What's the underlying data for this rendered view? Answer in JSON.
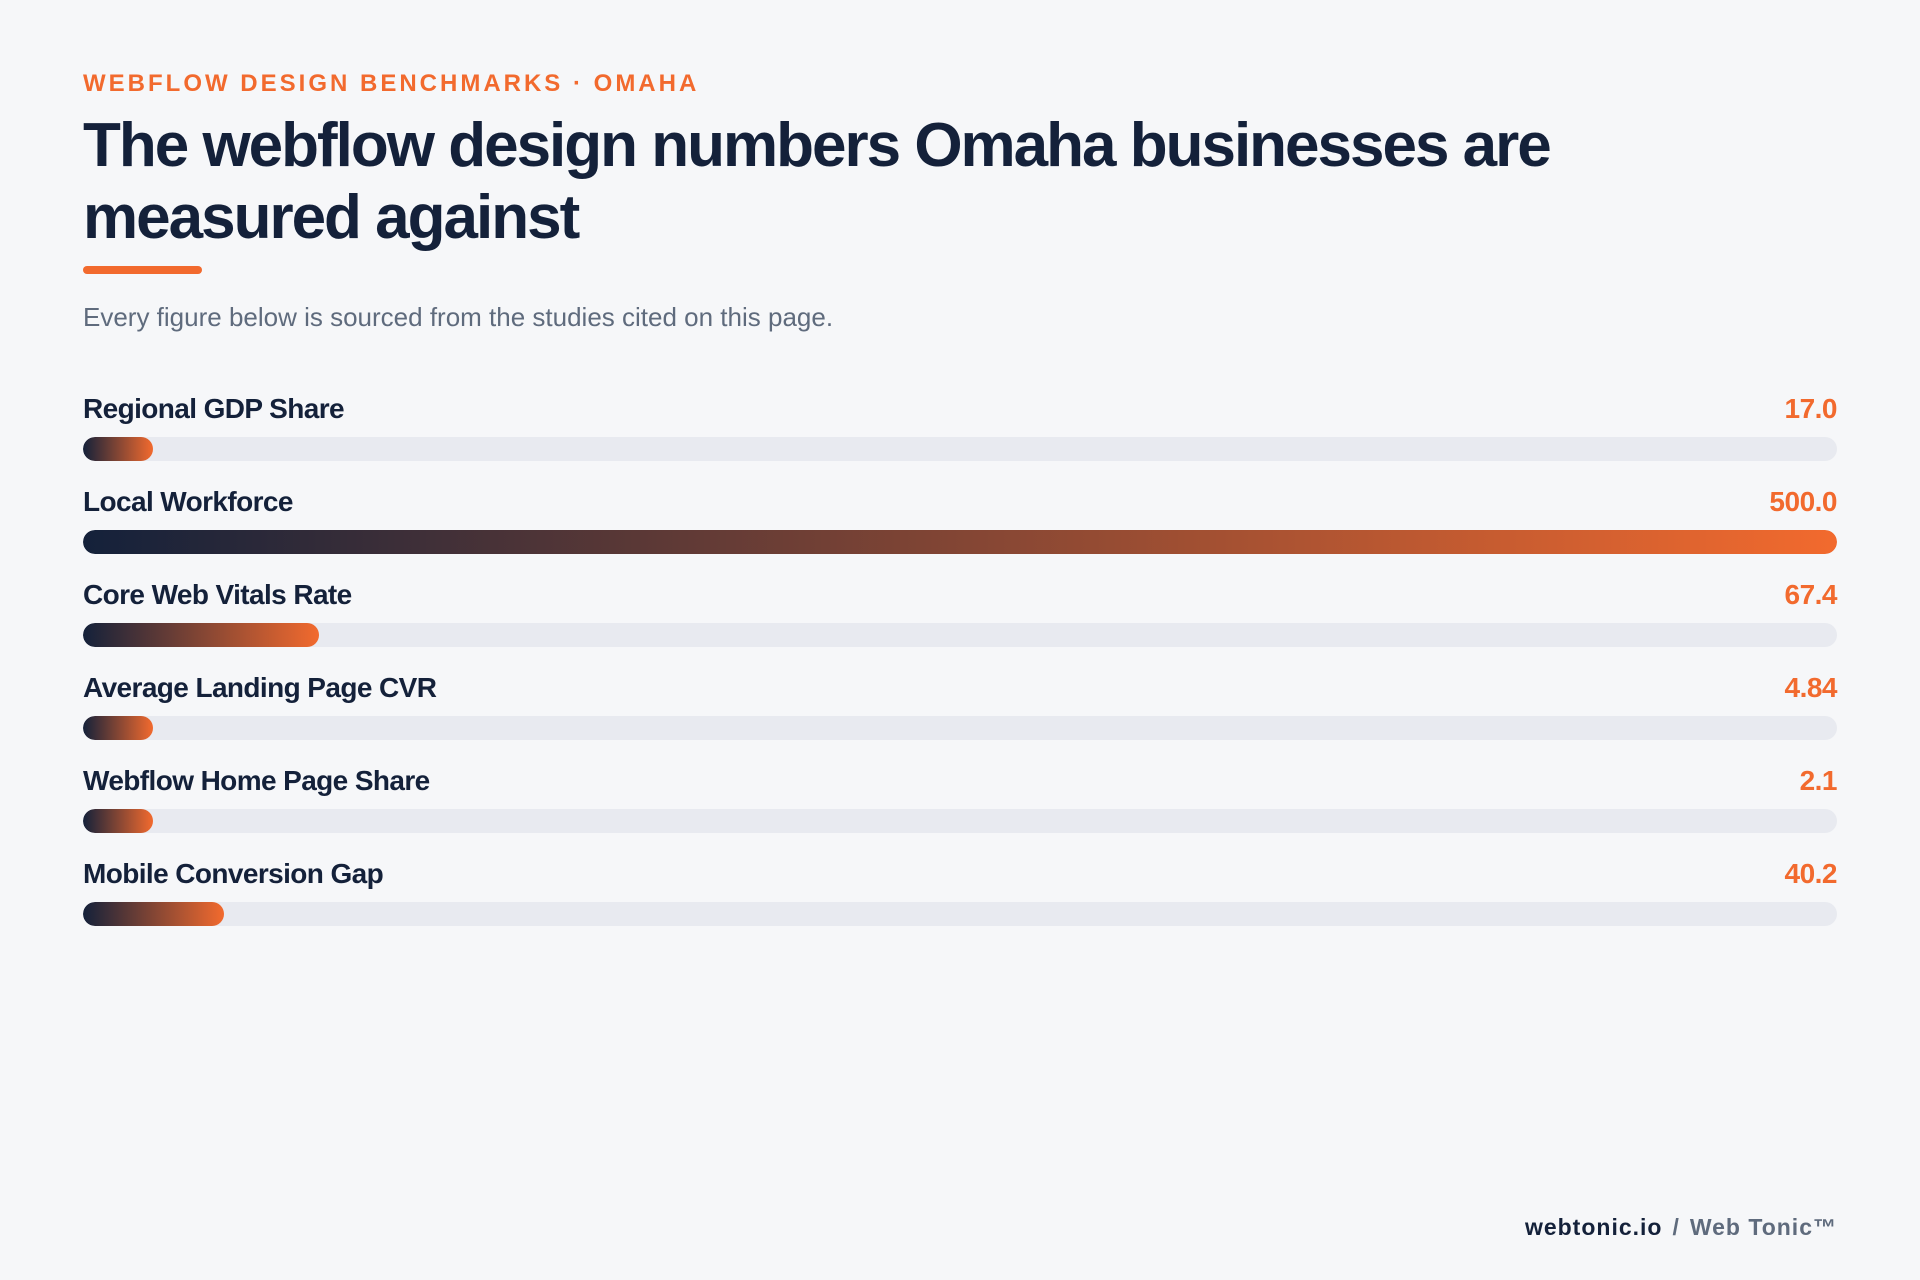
{
  "header": {
    "eyebrow": "WEBFLOW DESIGN BENCHMARKS · OMAHA",
    "title": "The webflow design numbers Omaha businesses are measured against",
    "subtitle": "Every figure below is sourced from the studies cited on this page."
  },
  "footer": {
    "domain": "webtonic.io",
    "separator": "/",
    "brand": "Web Tonic™"
  },
  "colors": {
    "accent": "#f26a2e",
    "navy": "#14213a",
    "track": "#e8eaf0",
    "background": "#f6f7f9"
  },
  "chart_data": {
    "type": "bar",
    "orientation": "horizontal",
    "title": "The webflow design numbers Omaha businesses are measured against",
    "categories": [
      "Regional GDP Share",
      "Local Workforce",
      "Core Web Vitals Rate",
      "Average Landing Page CVR",
      "Webflow Home Page Share",
      "Mobile Conversion Gap"
    ],
    "values": [
      17.0,
      500.0,
      67.4,
      4.84,
      2.1,
      40.2
    ],
    "value_labels": [
      "17.0",
      "500.0",
      "67.4",
      "4.84",
      "2.1",
      "40.2"
    ],
    "xlim": [
      0,
      500
    ],
    "grid": false,
    "legend": "none"
  }
}
